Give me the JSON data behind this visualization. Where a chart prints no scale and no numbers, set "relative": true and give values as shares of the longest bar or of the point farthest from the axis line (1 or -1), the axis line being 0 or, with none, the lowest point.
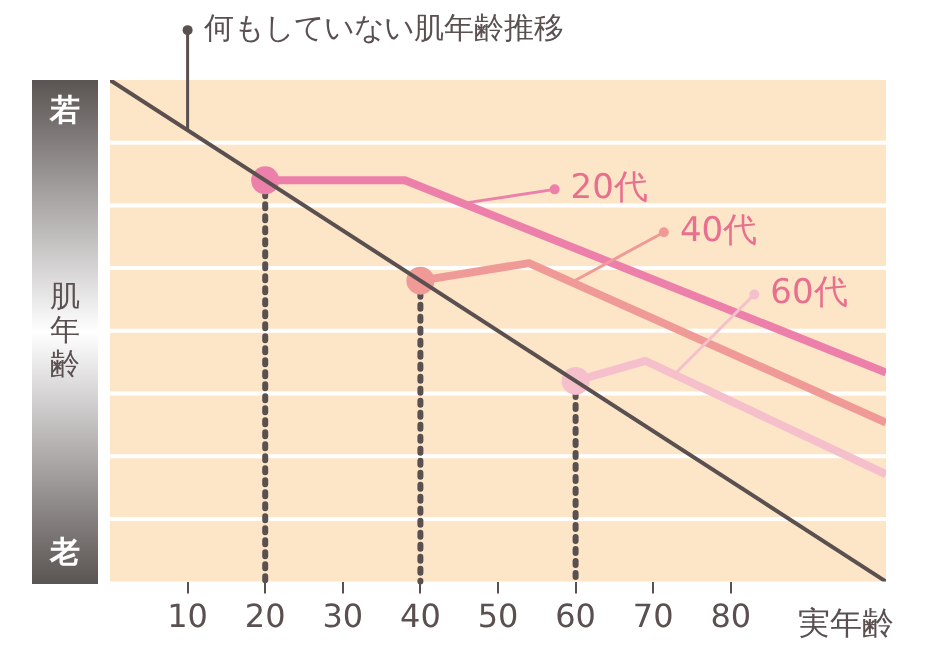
{
  "chart_data": {
    "type": "line",
    "relative": true,
    "xlabel": "実年齢",
    "ylabel": "肌年齢",
    "annotations": [
      "若",
      "老"
    ],
    "xlim": [
      0,
      100
    ],
    "xticks": [
      10,
      20,
      30,
      40,
      50,
      60,
      70,
      80
    ],
    "grid": "y",
    "legend": "top right",
    "line_style": "solid",
    "series": [
      {
        "name": "何もしていない肌年齢推移",
        "color": "#5a5050",
        "x": [
          0,
          100
        ],
        "values": [
          1,
          0
        ],
        "marker": "none"
      },
      {
        "name": "20代",
        "color": "#ec80aa",
        "x": [
          20,
          38,
          100
        ],
        "values": [
          0.8,
          0.8,
          0.417
        ],
        "marker": "none"
      },
      {
        "name": "40代",
        "color": "#f09a98",
        "x": [
          40,
          54,
          100
        ],
        "values": [
          0.6,
          0.635,
          0.317
        ],
        "marker": "none"
      },
      {
        "name": "60代",
        "color": "#f5c0cc",
        "x": [
          60,
          69,
          100
        ],
        "values": [
          0.4,
          0.44,
          0.214
        ],
        "marker": "none"
      },
      {
        "type": "scatter",
        "colors": [
          "#ec80aa",
          "#f09a98",
          "#f5c0cc"
        ],
        "x": [
          20,
          40,
          60
        ],
        "values": [
          0.8,
          0.6,
          0.4
        ],
        "marker": "circle"
      }
    ],
    "ref_lines": [
      {
        "axis": "x",
        "value": 20,
        "line_style": "dotted",
        "color": "#5a5050"
      },
      {
        "axis": "x",
        "value": 40,
        "line_style": "dotted",
        "color": "#5a5050"
      },
      {
        "axis": "x",
        "value": 60,
        "line_style": "dotted",
        "color": "#5a5050"
      }
    ]
  }
}
